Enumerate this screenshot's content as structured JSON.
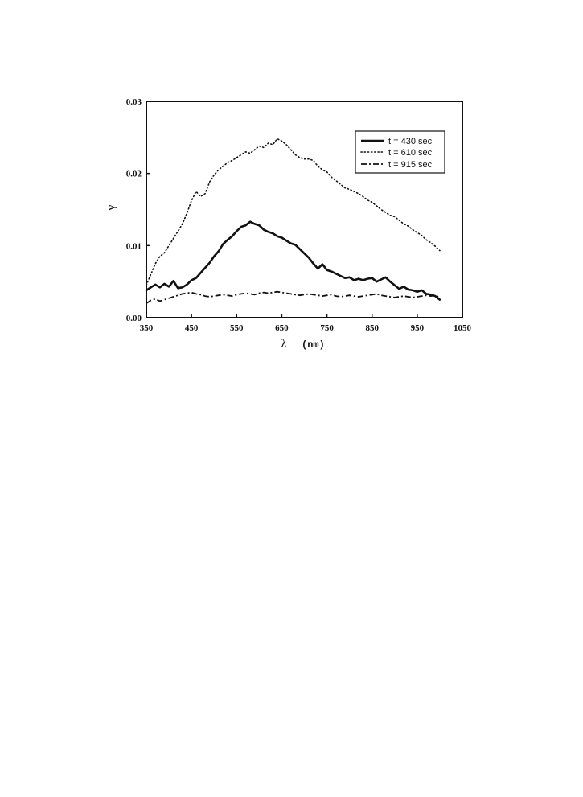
{
  "chart_data": {
    "type": "line",
    "title": "",
    "xlabel": "λ",
    "xlabel_unit": "(nm)",
    "ylabel": "γ",
    "xlim": [
      350,
      1050
    ],
    "ylim": [
      0,
      0.03
    ],
    "x_ticks": [
      "350",
      "450",
      "550",
      "650",
      "750",
      "850",
      "950",
      "1050"
    ],
    "y_ticks": [
      "0.00",
      "0.01",
      "0.02",
      "0.03"
    ],
    "grid": false,
    "legend_position": "top-right",
    "series": [
      {
        "name": "t = 430 sec",
        "style": "solid",
        "color": "#111111",
        "x": [
          350,
          360,
          370,
          380,
          390,
          400,
          410,
          420,
          430,
          440,
          450,
          460,
          470,
          480,
          490,
          500,
          510,
          520,
          530,
          540,
          550,
          560,
          570,
          580,
          590,
          600,
          610,
          620,
          630,
          640,
          650,
          660,
          670,
          680,
          690,
          700,
          710,
          720,
          730,
          740,
          750,
          760,
          770,
          780,
          790,
          800,
          810,
          820,
          830,
          840,
          850,
          860,
          870,
          880,
          890,
          900,
          910,
          920,
          930,
          940,
          950,
          960,
          970,
          980,
          990,
          1000
        ],
        "y": [
          0.0038,
          0.0042,
          0.0046,
          0.0042,
          0.0047,
          0.0043,
          0.0051,
          0.0041,
          0.0042,
          0.0046,
          0.0052,
          0.0055,
          0.0062,
          0.0069,
          0.0076,
          0.0085,
          0.0092,
          0.0102,
          0.0108,
          0.0113,
          0.012,
          0.0126,
          0.0128,
          0.0133,
          0.013,
          0.0128,
          0.0122,
          0.0119,
          0.0117,
          0.0113,
          0.0111,
          0.0107,
          0.0103,
          0.0101,
          0.0095,
          0.0089,
          0.0083,
          0.0075,
          0.0068,
          0.0074,
          0.0066,
          0.0064,
          0.0061,
          0.0058,
          0.0055,
          0.0056,
          0.0052,
          0.0054,
          0.0052,
          0.0054,
          0.0055,
          0.005,
          0.0053,
          0.0056,
          0.005,
          0.0045,
          0.004,
          0.0043,
          0.0039,
          0.0038,
          0.0036,
          0.0038,
          0.0033,
          0.0032,
          0.003,
          0.0025
        ]
      },
      {
        "name": "t = 610 sec",
        "style": "dotted",
        "color": "#111111",
        "x": [
          350,
          360,
          370,
          380,
          390,
          400,
          410,
          420,
          430,
          440,
          450,
          460,
          470,
          480,
          490,
          500,
          510,
          520,
          530,
          540,
          550,
          560,
          570,
          580,
          590,
          600,
          610,
          620,
          630,
          640,
          650,
          660,
          670,
          680,
          690,
          700,
          710,
          720,
          730,
          740,
          750,
          760,
          770,
          780,
          790,
          800,
          810,
          820,
          830,
          840,
          850,
          860,
          870,
          880,
          890,
          900,
          910,
          920,
          930,
          940,
          950,
          960,
          970,
          980,
          990,
          1000
        ],
        "y": [
          0.0045,
          0.006,
          0.0075,
          0.0085,
          0.009,
          0.01,
          0.011,
          0.012,
          0.013,
          0.0145,
          0.0162,
          0.0175,
          0.0168,
          0.0172,
          0.0188,
          0.0198,
          0.0205,
          0.021,
          0.0215,
          0.0218,
          0.0222,
          0.0226,
          0.023,
          0.0228,
          0.0233,
          0.0238,
          0.0236,
          0.0242,
          0.024,
          0.0248,
          0.0245,
          0.024,
          0.0233,
          0.0226,
          0.0222,
          0.022,
          0.022,
          0.0218,
          0.021,
          0.0205,
          0.0202,
          0.0195,
          0.019,
          0.0185,
          0.018,
          0.0178,
          0.0175,
          0.0172,
          0.0168,
          0.0163,
          0.016,
          0.0155,
          0.015,
          0.0146,
          0.0142,
          0.014,
          0.0135,
          0.013,
          0.0127,
          0.0122,
          0.0118,
          0.0114,
          0.0108,
          0.0104,
          0.0099,
          0.0093
        ]
      },
      {
        "name": "t = 915 sec",
        "style": "dash-dot",
        "color": "#111111",
        "x": [
          350,
          360,
          370,
          380,
          390,
          400,
          410,
          420,
          430,
          440,
          450,
          460,
          470,
          480,
          490,
          500,
          510,
          520,
          530,
          540,
          550,
          560,
          570,
          580,
          590,
          600,
          610,
          620,
          630,
          640,
          650,
          660,
          670,
          680,
          690,
          700,
          710,
          720,
          730,
          740,
          750,
          760,
          770,
          780,
          790,
          800,
          810,
          820,
          830,
          840,
          850,
          860,
          870,
          880,
          890,
          900,
          910,
          920,
          930,
          940,
          950,
          960,
          970,
          980,
          990,
          1000
        ],
        "y": [
          0.002,
          0.0024,
          0.0026,
          0.0023,
          0.0025,
          0.0027,
          0.0029,
          0.0031,
          0.0033,
          0.0034,
          0.0035,
          0.0033,
          0.0032,
          0.003,
          0.0029,
          0.003,
          0.0031,
          0.0032,
          0.0031,
          0.003,
          0.0032,
          0.0033,
          0.0034,
          0.0033,
          0.0032,
          0.0034,
          0.0035,
          0.0034,
          0.0035,
          0.0036,
          0.0035,
          0.0034,
          0.0033,
          0.0032,
          0.0031,
          0.0032,
          0.0033,
          0.0032,
          0.0031,
          0.003,
          0.0031,
          0.0032,
          0.003,
          0.0029,
          0.003,
          0.0031,
          0.003,
          0.0029,
          0.003,
          0.0031,
          0.0032,
          0.0033,
          0.0031,
          0.003,
          0.0029,
          0.0028,
          0.0029,
          0.003,
          0.0029,
          0.0028,
          0.0029,
          0.003,
          0.0031,
          0.003,
          0.0031,
          0.0028
        ]
      }
    ]
  }
}
